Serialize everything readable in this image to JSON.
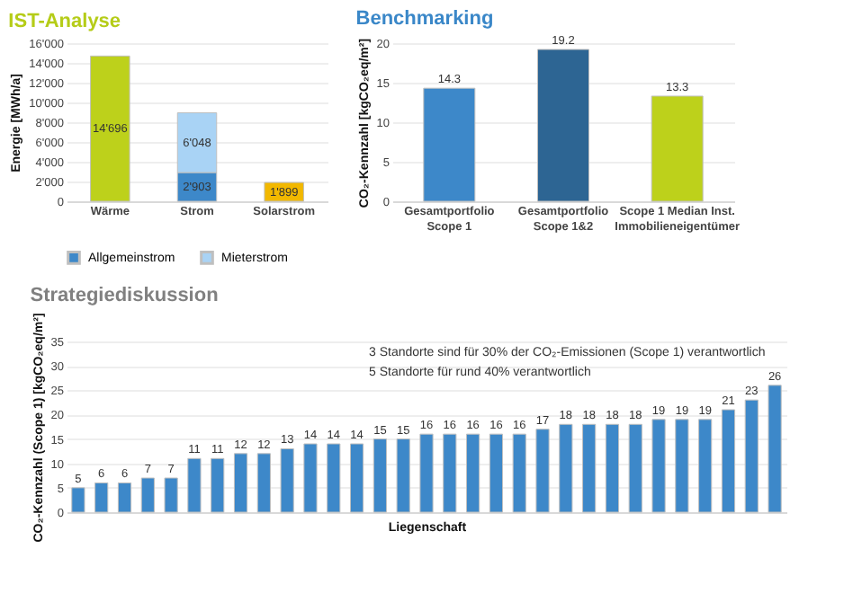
{
  "chart_data": [
    {
      "type": "bar",
      "title": "IST-Analyse",
      "ylabel": "Energie [MWh/a]",
      "categories": [
        "Wärme",
        "Strom",
        "Solarstrom"
      ],
      "stacked": true,
      "ylim": [
        0,
        16000
      ],
      "yticks": [
        0,
        {
          "value": 2000,
          "label": "2'000"
        },
        {
          "value": 4000,
          "label": "4'000"
        },
        {
          "value": 6000,
          "label": "6'000"
        },
        {
          "value": 8000,
          "label": "8'000"
        },
        {
          "value": 10000,
          "label": "10'000"
        },
        {
          "value": 12000,
          "label": "12'000"
        },
        {
          "value": 14000,
          "label": "14'000"
        },
        {
          "value": 16000,
          "label": "16'000"
        }
      ],
      "grid": "y",
      "legend": "bottom",
      "series": [
        {
          "color": "#bdd11b",
          "values": [
            14696,
            null,
            null
          ],
          "value_labels": [
            "14'696",
            null,
            null
          ]
        },
        {
          "name": "Allgemeinstrom",
          "color": "#3d88c9",
          "values": [
            null,
            2903,
            null
          ],
          "value_labels": [
            null,
            "2'903",
            null
          ]
        },
        {
          "name": "Mieterstrom",
          "color": "#a9d3f5",
          "values": [
            null,
            6048,
            null
          ],
          "value_labels": [
            null,
            "6'048",
            null
          ]
        },
        {
          "color": "#f2b800",
          "values": [
            null,
            null,
            1899
          ],
          "value_labels": [
            null,
            null,
            "1'899"
          ]
        }
      ]
    },
    {
      "type": "bar",
      "title": "Benchmarking",
      "ylabel": "CO₂-Kennzahl [kgCO₂eq/m²]",
      "categories": [
        "Gesamtportfolio\nScope 1",
        "Gesamtportfolio\nScope 1&2",
        "Scope 1 Median Inst.\nImmobilieneigentümer"
      ],
      "values": [
        14.3,
        19.2,
        13.3
      ],
      "colors": [
        "#3d88c9",
        "#2d6593",
        "#bdd11b"
      ],
      "data_labels": true,
      "ylim": [
        0,
        20
      ],
      "yticks": [
        0,
        5,
        10,
        15,
        20
      ],
      "grid": "y"
    },
    {
      "type": "bar",
      "title": "Strategiediskussion",
      "ylabel": "CO₂-Kennzahl (Scope 1) [kgCO₂eq/m²]",
      "xlabel": "Liegenschaft",
      "categories": [
        null,
        null,
        null,
        null,
        null,
        null,
        null,
        null,
        null,
        null,
        null,
        null,
        null,
        null,
        null,
        null,
        null,
        null,
        null,
        null,
        null,
        null,
        null,
        null,
        null,
        null,
        null,
        null,
        null,
        null,
        null
      ],
      "values": [
        5,
        6,
        6,
        7,
        7,
        11,
        11,
        12,
        12,
        13,
        14,
        14,
        14,
        15,
        15,
        16,
        16,
        16,
        16,
        16,
        17,
        18,
        18,
        18,
        18,
        19,
        19,
        19,
        21,
        23,
        26
      ],
      "color": "#3d88c9",
      "data_labels": true,
      "ylim": [
        0,
        35
      ],
      "yticks": [
        0,
        5,
        10,
        15,
        20,
        25,
        30,
        35
      ],
      "grid": "y",
      "tick_labels": "y",
      "annotations": [
        "3 Standorte sind für 30% der CO₂-Emissionen (Scope 1) verantwortlich",
        "5 Standorte für rund 40% verantwortlich"
      ]
    }
  ]
}
